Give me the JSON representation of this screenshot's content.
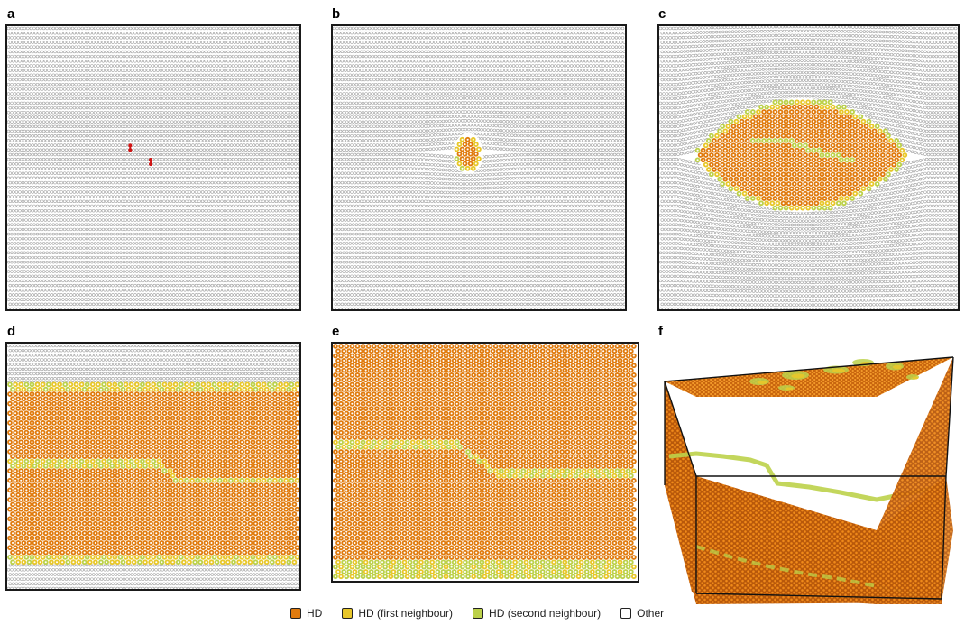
{
  "figure": {
    "panels": [
      {
        "id": "a",
        "label": "a"
      },
      {
        "id": "b",
        "label": "b"
      },
      {
        "id": "c",
        "label": "c"
      },
      {
        "id": "d",
        "label": "d"
      },
      {
        "id": "e",
        "label": "e"
      },
      {
        "id": "f",
        "label": "f"
      }
    ],
    "legend": [
      {
        "label": "HD",
        "color": "#e07b0e"
      },
      {
        "label": "HD (first neighbour)",
        "color": "#e8c72a"
      },
      {
        "label": "HD (second neighbour)",
        "color": "#bcd14a"
      },
      {
        "label": "Other",
        "color": "#ffffff"
      }
    ],
    "colors": {
      "hd": "#e07b0e",
      "first_neighbour": "#e8c72a",
      "second_neighbour": "#bcd14a",
      "other": "#ffffff",
      "other_stroke": "#9a9a9a",
      "defect": "#d01515"
    }
  }
}
